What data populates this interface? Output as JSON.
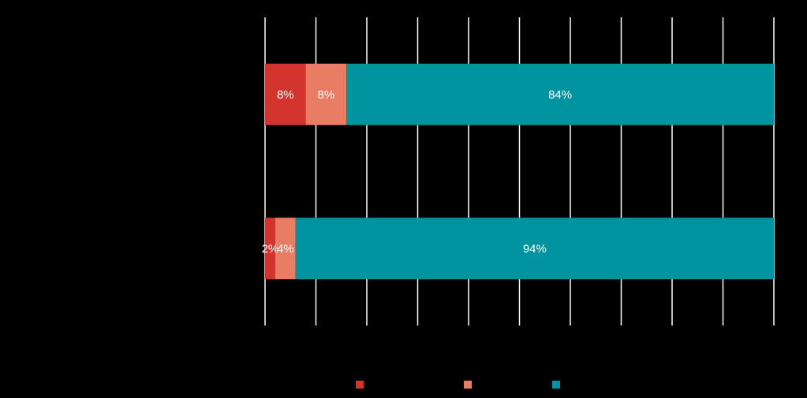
{
  "chart_data": {
    "type": "bar",
    "orientation": "horizontal",
    "stacked": true,
    "title": "",
    "xlabel": "",
    "ylabel": "",
    "xlim": [
      0,
      100
    ],
    "grid": true,
    "legend_position": "bottom",
    "categories": [
      "",
      ""
    ],
    "series": [
      {
        "name": "",
        "color": "#d3352e",
        "values": [
          8,
          2
        ],
        "labels": [
          "8%",
          "2%"
        ]
      },
      {
        "name": "",
        "color": "#e87d63",
        "values": [
          8,
          4
        ],
        "labels": [
          "8%",
          "4%"
        ]
      },
      {
        "name": "",
        "color": "#0093a0",
        "values": [
          84,
          94
        ],
        "labels": [
          "84%",
          "94%"
        ]
      }
    ]
  }
}
